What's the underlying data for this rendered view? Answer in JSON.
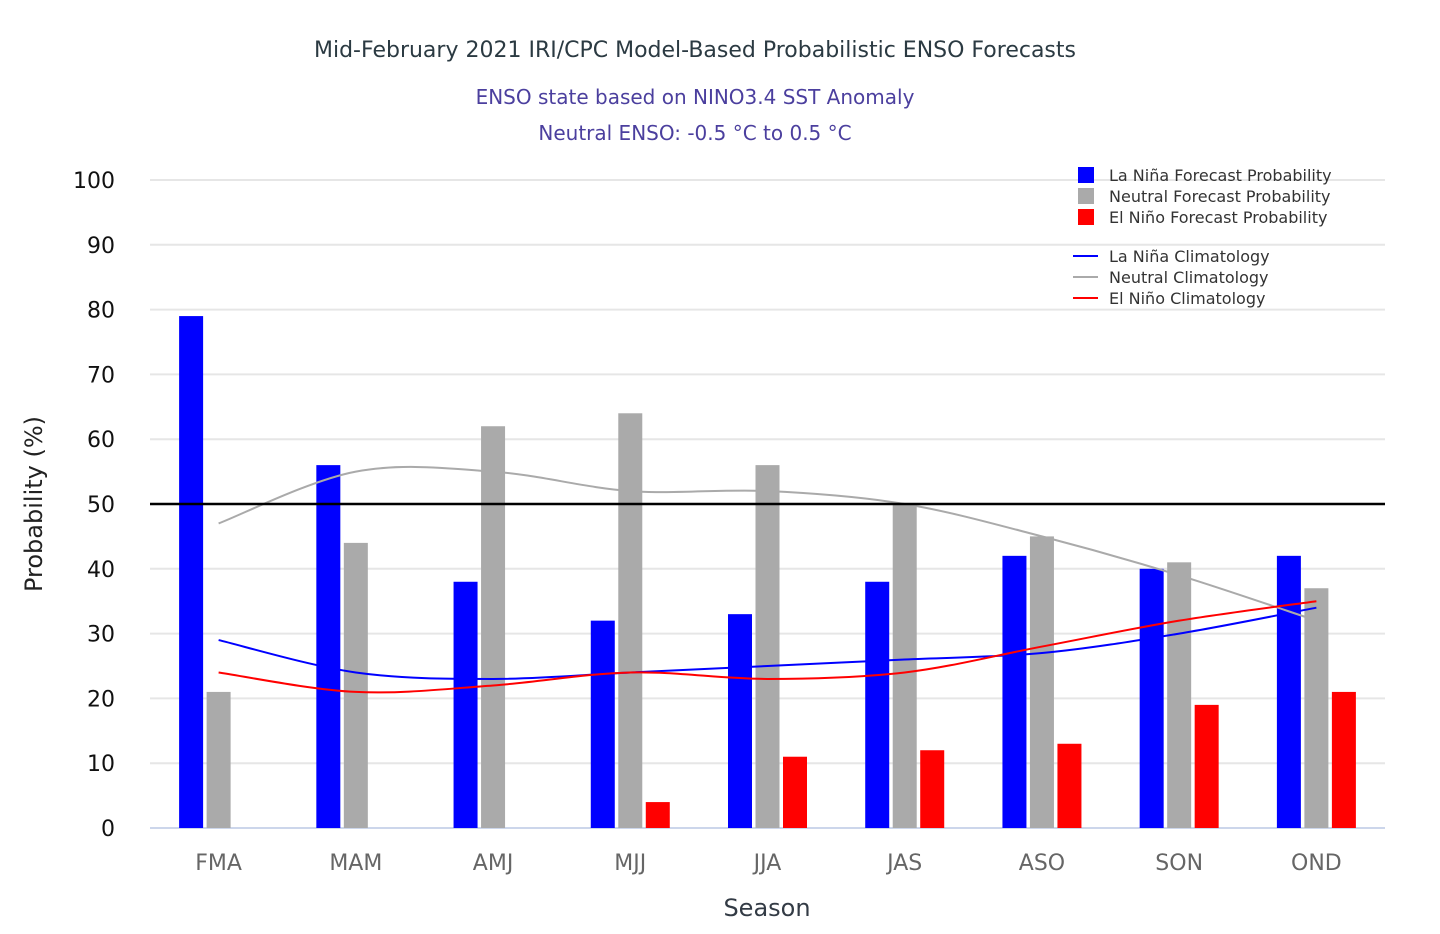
{
  "chart_data": {
    "type": "bar",
    "title": "Mid-February 2021 IRI/CPC Model-Based Probabilistic ENSO Forecasts",
    "subtitle": [
      "ENSO state based on NINO3.4 SST Anomaly",
      "Neutral ENSO: -0.5 °C to 0.5 °C"
    ],
    "xlabel": "Season",
    "ylabel": "Probability (%)",
    "ylim": [
      0,
      100
    ],
    "yticks": [
      0,
      10,
      20,
      30,
      40,
      50,
      60,
      70,
      80,
      90,
      100
    ],
    "reference_line": 50,
    "grid": true,
    "legend_position": "top-right",
    "categories": [
      "FMA",
      "MAM",
      "AMJ",
      "MJJ",
      "JJA",
      "JAS",
      "ASO",
      "SON",
      "OND"
    ],
    "series": [
      {
        "name": "La Niña Forecast Probability",
        "kind": "bar",
        "color": "#0000ff",
        "values": [
          79,
          56,
          38,
          32,
          33,
          38,
          42,
          40,
          42
        ]
      },
      {
        "name": "Neutral Forecast Probability",
        "kind": "bar",
        "color": "#aaaaaa",
        "values": [
          21,
          44,
          62,
          64,
          56,
          50,
          45,
          41,
          37
        ]
      },
      {
        "name": "El Niño Forecast Probability",
        "kind": "bar",
        "color": "#ff0000",
        "values": [
          0,
          0,
          0,
          4,
          11,
          12,
          13,
          19,
          21
        ]
      },
      {
        "name": "La Niña Climatology",
        "kind": "line",
        "color": "#0000ff",
        "values": [
          29,
          24,
          23,
          24,
          25,
          26,
          27,
          30,
          34
        ]
      },
      {
        "name": "Neutral Climatology",
        "kind": "line",
        "color": "#aaaaaa",
        "values": [
          47,
          55,
          55,
          52,
          52,
          50,
          45,
          39,
          32
        ]
      },
      {
        "name": "El Niño Climatology",
        "kind": "line",
        "color": "#ff0000",
        "values": [
          24,
          21,
          22,
          24,
          23,
          24,
          28,
          32,
          35
        ]
      }
    ]
  }
}
